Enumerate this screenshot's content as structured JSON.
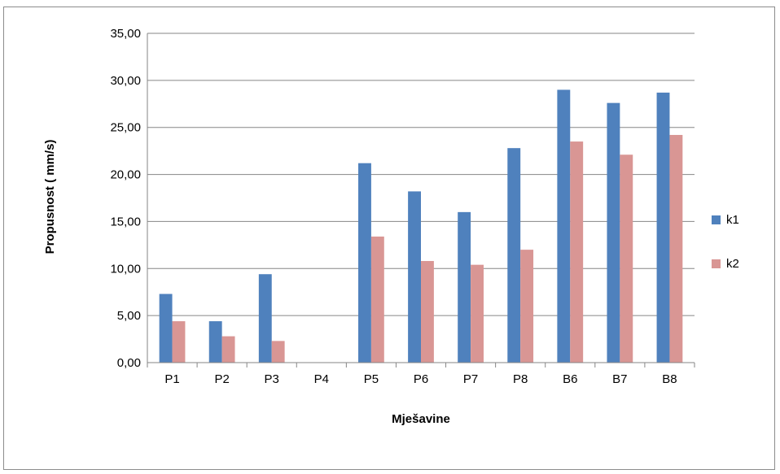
{
  "chart_data": {
    "type": "bar",
    "categories": [
      "P1",
      "P2",
      "P3",
      "P4",
      "P5",
      "P6",
      "P7",
      "P8",
      "B6",
      "B7",
      "B8"
    ],
    "series": [
      {
        "name": "k1",
        "color": "#4f81bd",
        "values": [
          7.3,
          4.4,
          9.4,
          0,
          21.2,
          18.2,
          16.0,
          22.8,
          29.0,
          27.6,
          28.7
        ]
      },
      {
        "name": "k2",
        "color": "#d99694",
        "values": [
          4.4,
          2.8,
          2.3,
          0,
          13.4,
          10.8,
          10.4,
          12.0,
          23.5,
          22.1,
          24.2
        ]
      }
    ],
    "title": "",
    "xlabel": "Mješavine",
    "ylabel": "Propusnost ( mm/s)",
    "ylim": [
      0,
      35
    ],
    "yticks": [
      "0,00",
      "5,00",
      "10,00",
      "15,00",
      "20,00",
      "25,00",
      "30,00",
      "35,00"
    ],
    "grid": true,
    "legend_position": "right"
  }
}
